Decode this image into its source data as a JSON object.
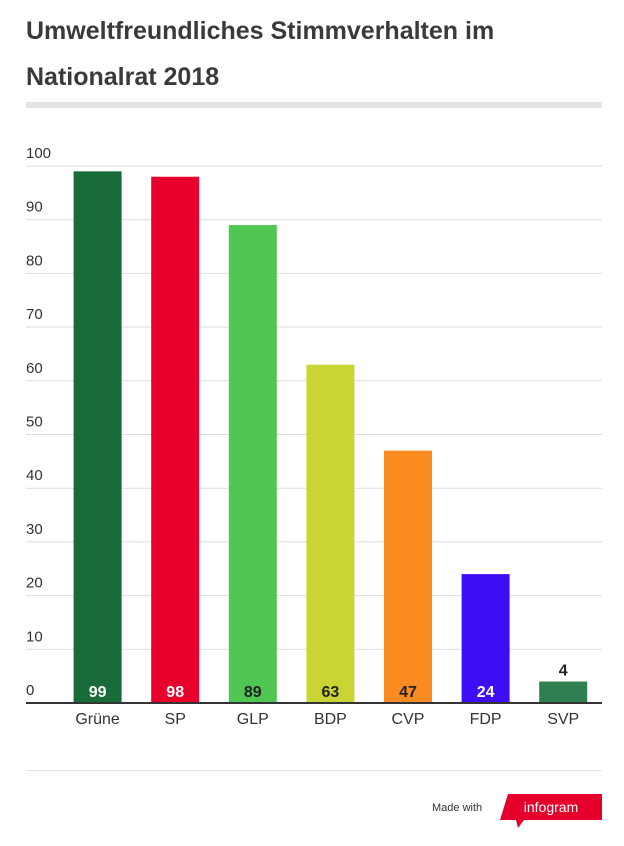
{
  "header": {
    "title": "Umweltfreundliches Stimmverhalten im Nationalrat 2018"
  },
  "colors": {
    "grid": "#dddddd",
    "axis": "#333333",
    "label_dark": "#222222",
    "label_light": "#ffffff",
    "brand": "#e5002b"
  },
  "chart_data": {
    "type": "bar",
    "title": "Umweltfreundliches Stimmverhalten im Nationalrat 2018",
    "xlabel": "",
    "ylabel": "",
    "ylim": [
      0,
      100
    ],
    "yticks": [
      0,
      10,
      20,
      30,
      40,
      50,
      60,
      70,
      80,
      90,
      100
    ],
    "grid": true,
    "categories": [
      "Grüne",
      "SP",
      "GLP",
      "BDP",
      "CVP",
      "FDP",
      "SVP"
    ],
    "values": [
      99,
      98,
      89,
      63,
      47,
      24,
      4
    ],
    "bar_colors": [
      "#1a6b3a",
      "#e8002d",
      "#4fc752",
      "#c9d534",
      "#f98b20",
      "#3d0df5",
      "#2e8050"
    ],
    "label_colors": [
      "#ffffff",
      "#ffffff",
      "#222222",
      "#222222",
      "#222222",
      "#ffffff",
      "#222222"
    ]
  },
  "footer": {
    "made_with": "Made with",
    "brand": "infogram",
    "brand_icon": "infogram-logo"
  }
}
